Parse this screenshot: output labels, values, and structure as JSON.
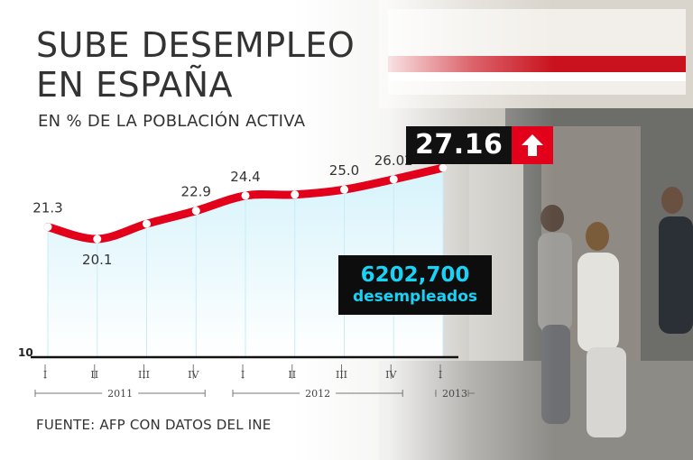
{
  "title_line1": "SUBE DESEMPLEO",
  "title_line2": "EN ESPAÑA",
  "subtitle": "EN % DE LA POBLACIÓN ACTIVA",
  "source": "FUENTE: AFP CON DATOS DEL INE",
  "callouts": {
    "latest_value": "27.16",
    "arrow_icon": "up-arrow-icon",
    "unemployed_number": "6202,700",
    "unemployed_label": "desempleados"
  },
  "colors": {
    "line": "#e2001a",
    "area_top": "#d6f3fb",
    "area_bottom": "#ffffff",
    "callout_bg": "#111111",
    "callout_text": "#19d3f7"
  },
  "chart_data": {
    "type": "area",
    "x": [
      "I",
      "II",
      "III",
      "IV",
      "I",
      "II",
      "III",
      "IV",
      "I"
    ],
    "years": [
      {
        "label": "2011",
        "from": 0,
        "to": 3
      },
      {
        "label": "2012",
        "from": 4,
        "to": 7
      },
      {
        "label": "2013",
        "from": 8,
        "to": 8
      }
    ],
    "series": [
      {
        "values": [
          21.3,
          20.1,
          21.6,
          22.9,
          24.4,
          24.5,
          25.0,
          26.02,
          27.16
        ],
        "labels": [
          "21.3",
          "20.1",
          "",
          "22.9",
          "24.4",
          "",
          "25.0",
          "26.02",
          ""
        ]
      }
    ],
    "ymin_label": "10",
    "ylim": [
      10,
      28
    ],
    "grid": false,
    "legend": "none"
  }
}
